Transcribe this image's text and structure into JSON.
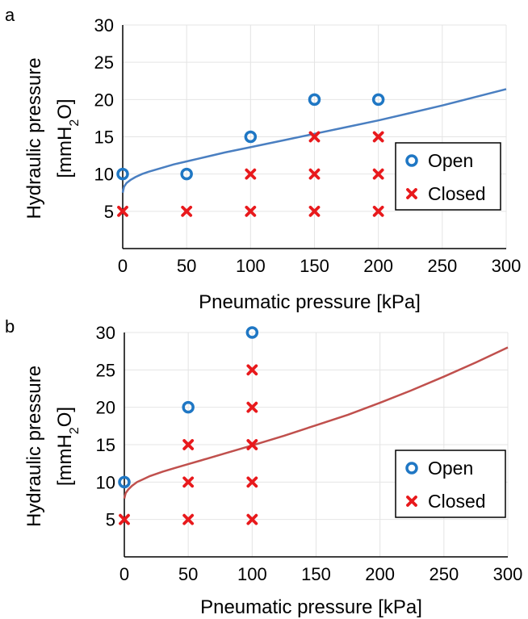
{
  "colors": {
    "open_marker": "#1f77c4",
    "closed_marker": "#e8191c",
    "fit_a": "#4a7fc1",
    "fit_b": "#c0504d",
    "grid": "#e4e4e4"
  },
  "chart_data": [
    {
      "panel_label": "a",
      "type": "scatter",
      "xlabel": "Pneumatic pressure [kPa]",
      "ylabel_line1": "Hydraulic pressure",
      "ylabel_line2_prefix": "[mmH",
      "ylabel_line2_sub": "2",
      "ylabel_line2_suffix": "O]",
      "xlim": [
        0,
        300
      ],
      "ylim": [
        0,
        30
      ],
      "xticks": [
        0,
        50,
        100,
        150,
        200,
        250,
        300
      ],
      "yticks": [
        5,
        10,
        15,
        20,
        25,
        30
      ],
      "grid": true,
      "legend_position": "middle-right",
      "series": [
        {
          "name": "Open",
          "marker": "circle",
          "points": [
            [
              0,
              10
            ],
            [
              50,
              10
            ],
            [
              100,
              15
            ],
            [
              150,
              20
            ],
            [
              200,
              20
            ]
          ]
        },
        {
          "name": "Closed",
          "marker": "x",
          "points": [
            [
              0,
              5
            ],
            [
              50,
              5
            ],
            [
              100,
              5
            ],
            [
              150,
              5
            ],
            [
              200,
              5
            ],
            [
              100,
              10
            ],
            [
              150,
              10
            ],
            [
              200,
              10
            ],
            [
              150,
              15
            ],
            [
              200,
              15
            ]
          ]
        }
      ],
      "fit_curve": {
        "x": [
          0,
          1,
          3,
          6,
          10,
          15,
          20,
          30,
          40,
          50,
          60,
          80,
          100,
          125,
          150,
          175,
          200,
          225,
          250,
          275,
          300
        ],
        "y": [
          7.5,
          8.3,
          8.8,
          9.2,
          9.6,
          10.0,
          10.3,
          10.8,
          11.3,
          11.7,
          12.1,
          12.9,
          13.6,
          14.5,
          15.4,
          16.3,
          17.2,
          18.2,
          19.2,
          20.3,
          21.4
        ]
      }
    },
    {
      "panel_label": "b",
      "type": "scatter",
      "xlabel": "Pneumatic pressure [kPa]",
      "ylabel_line1": "Hydraulic pressure",
      "ylabel_line2_prefix": "[mmH",
      "ylabel_line2_sub": "2",
      "ylabel_line2_suffix": "O]",
      "xlim": [
        0,
        300
      ],
      "ylim": [
        0,
        30
      ],
      "xticks": [
        0,
        50,
        100,
        150,
        200,
        250,
        300
      ],
      "yticks": [
        5,
        10,
        15,
        20,
        25,
        30
      ],
      "grid": true,
      "legend_position": "lower-right",
      "series": [
        {
          "name": "Open",
          "marker": "circle",
          "points": [
            [
              0,
              10
            ],
            [
              50,
              20
            ],
            [
              100,
              30
            ]
          ]
        },
        {
          "name": "Closed",
          "marker": "x",
          "points": [
            [
              0,
              5
            ],
            [
              50,
              5
            ],
            [
              50,
              10
            ],
            [
              50,
              15
            ],
            [
              100,
              5
            ],
            [
              100,
              10
            ],
            [
              100,
              15
            ],
            [
              100,
              20
            ],
            [
              100,
              25
            ]
          ]
        }
      ],
      "fit_curve": {
        "x": [
          0,
          1,
          3,
          6,
          10,
          15,
          20,
          30,
          40,
          50,
          60,
          80,
          100,
          125,
          150,
          175,
          200,
          225,
          250,
          275,
          300
        ],
        "y": [
          7.8,
          8.5,
          9.0,
          9.5,
          10.0,
          10.4,
          10.8,
          11.4,
          11.9,
          12.4,
          12.9,
          13.9,
          14.9,
          16.2,
          17.6,
          19.0,
          20.6,
          22.3,
          24.1,
          26.0,
          28.0
        ]
      }
    }
  ]
}
